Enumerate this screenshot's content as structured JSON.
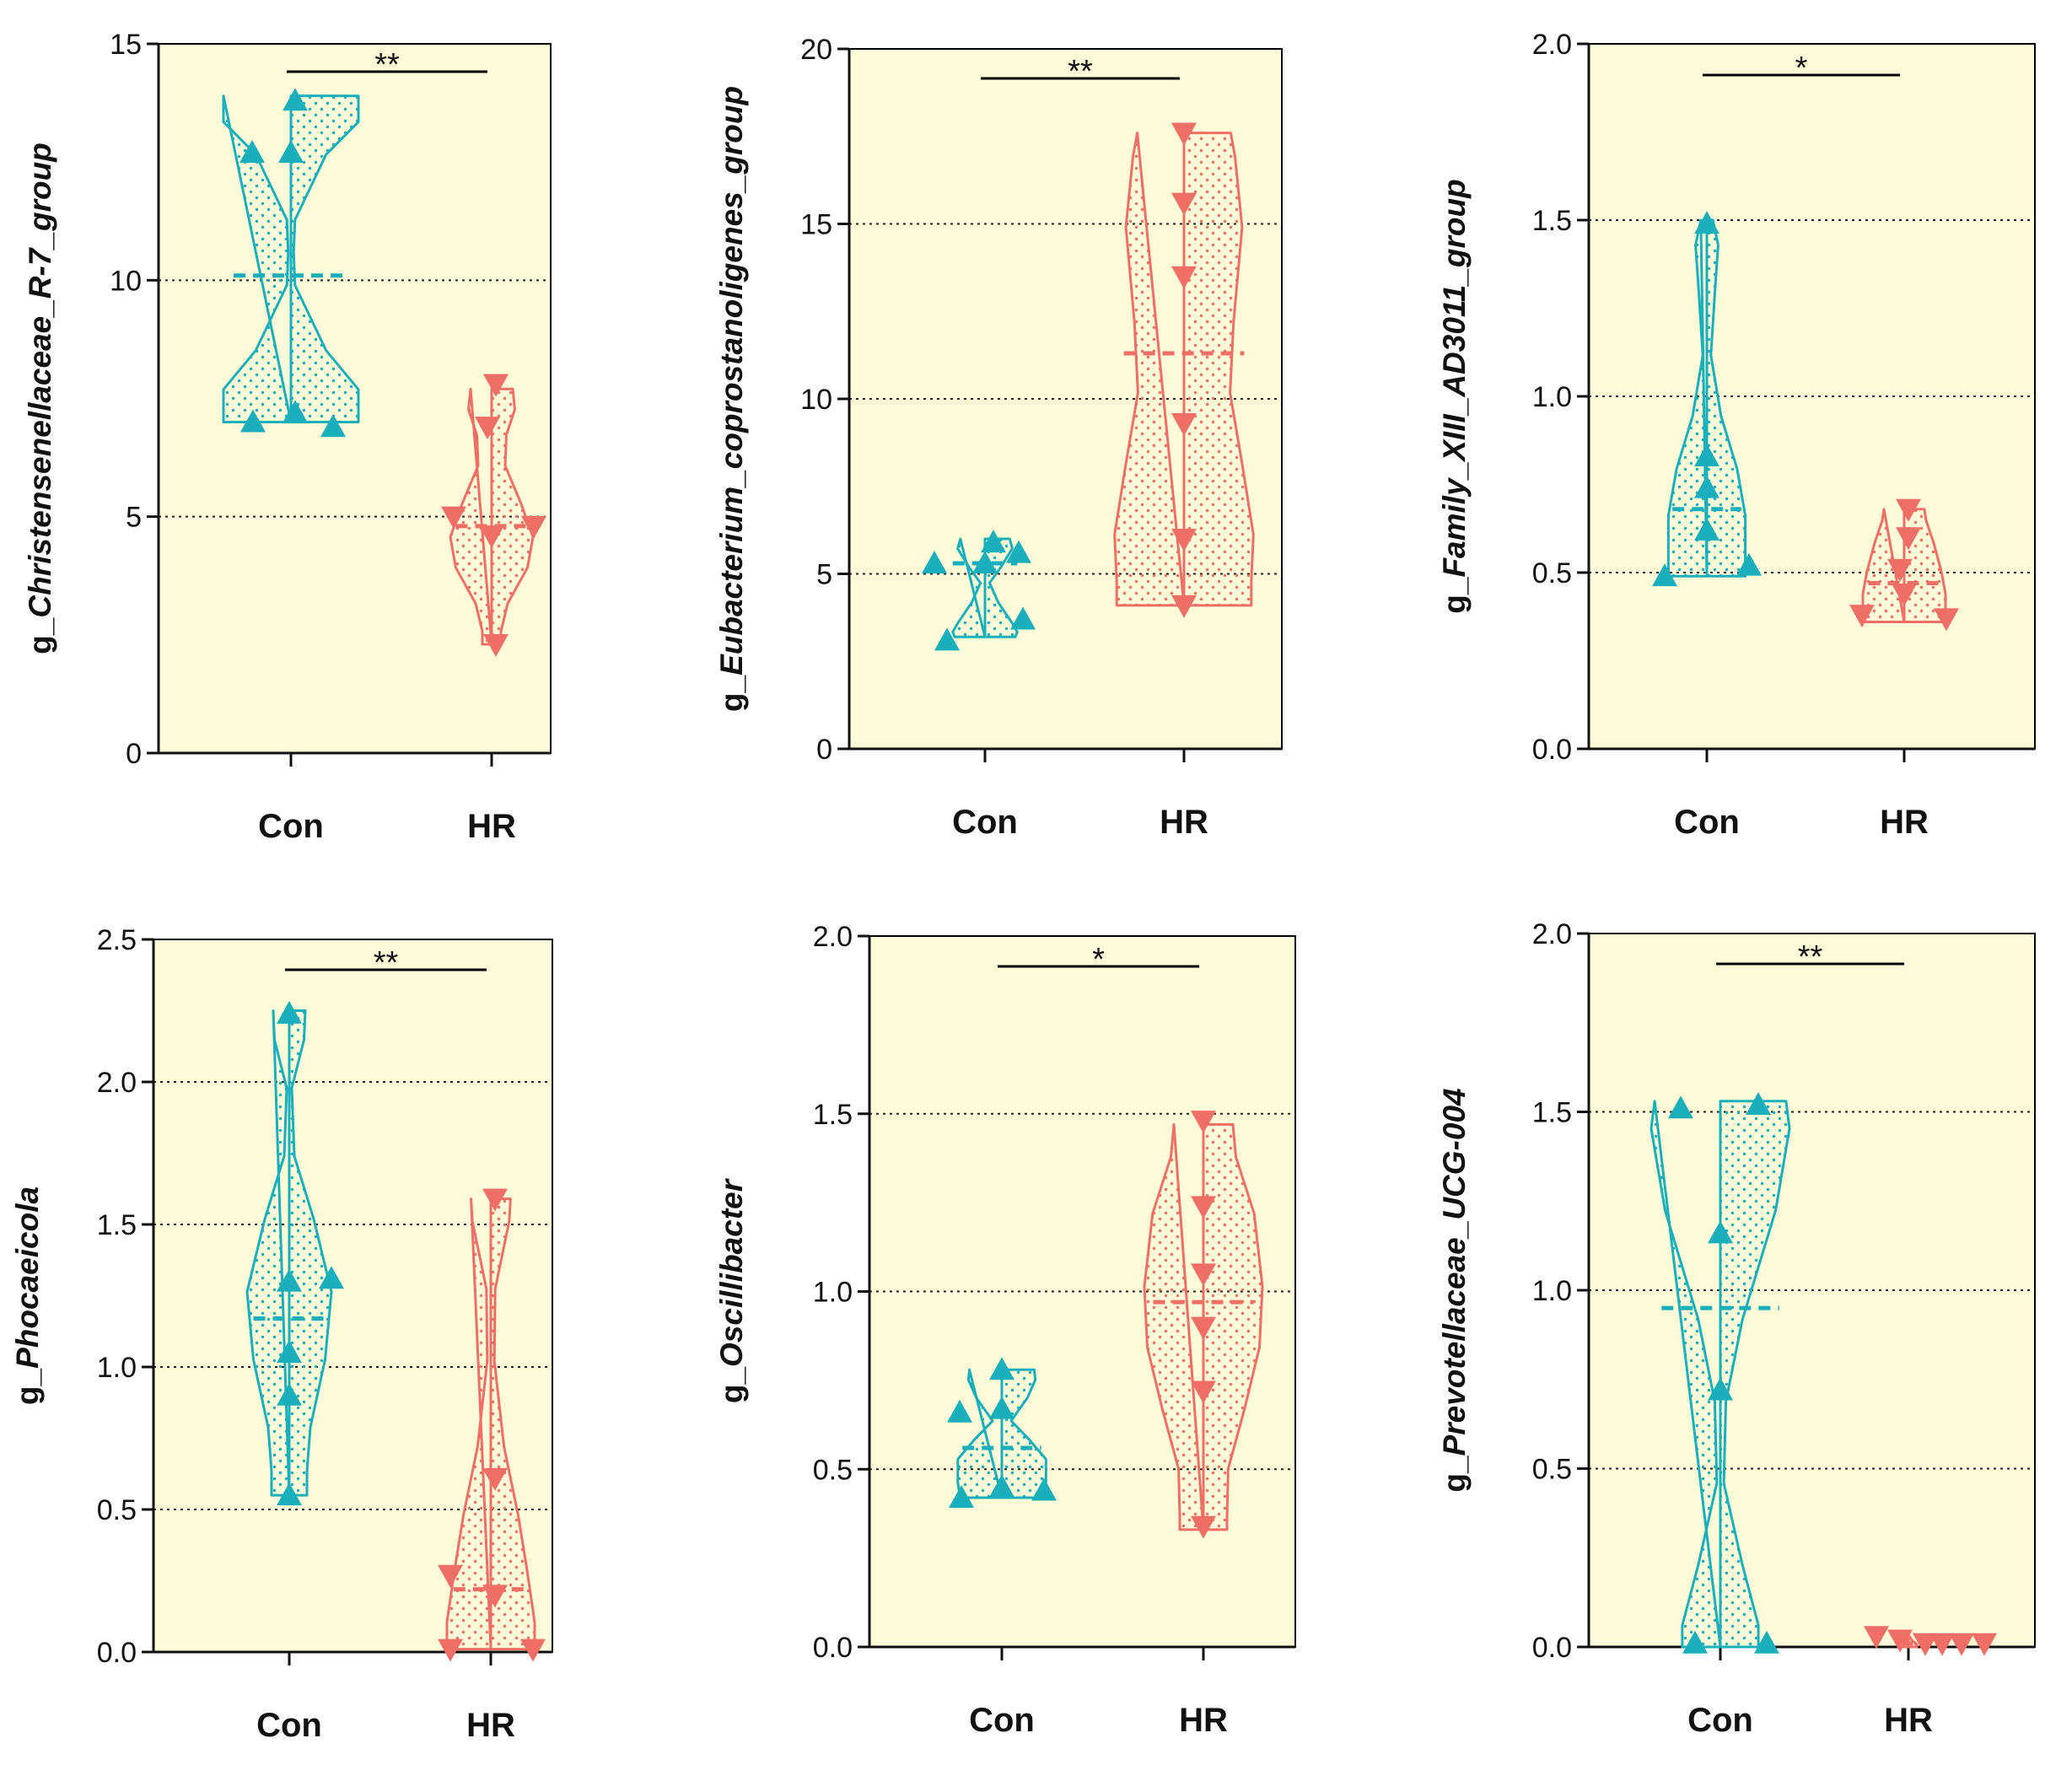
{
  "figure": {
    "colors": {
      "con": "#1aafbb",
      "hr": "#ef6f67",
      "panel_bg": "#fdfbd8",
      "axis": "#111111"
    },
    "marker_names": {
      "con": "triangle-up-icon",
      "hr": "triangle-down-icon"
    }
  },
  "chart_data": [
    {
      "type": "violin",
      "ylabel_prefix": "g_",
      "ylabel_italic": "Christensenellaceae_R-7_group",
      "categories": [
        "Con",
        "HR"
      ],
      "ylim": [
        0,
        15
      ],
      "yticks": [
        0,
        5,
        10,
        15
      ],
      "ytick_labels": [
        "0",
        "5",
        "10",
        "15"
      ],
      "gridlines": [
        5,
        10
      ],
      "series": [
        {
          "name": "Con",
          "values": [
            13.8,
            12.7,
            12.7,
            7.2,
            7.0,
            6.9
          ],
          "median": 10.1,
          "range": [
            7.0,
            13.9
          ]
        },
        {
          "name": "HR",
          "values": [
            7.8,
            6.9,
            5.0,
            4.6,
            4.8,
            2.3
          ],
          "median": 4.8,
          "range": [
            2.3,
            7.7
          ]
        }
      ],
      "significance": "**"
    },
    {
      "type": "violin",
      "ylabel_prefix": "g_",
      "ylabel_italic": "Eubacterium_coprostanoligenes_group",
      "categories": [
        "Con",
        "HR"
      ],
      "ylim": [
        0,
        20
      ],
      "yticks": [
        0,
        5,
        10,
        15,
        20
      ],
      "ytick_labels": [
        "0",
        "5",
        "10",
        "15",
        "20"
      ],
      "gridlines": [
        5,
        10,
        15
      ],
      "series": [
        {
          "name": "Con",
          "values": [
            5.9,
            5.6,
            5.3,
            5.3,
            3.7,
            3.1
          ],
          "median": 5.3,
          "range": [
            3.2,
            6.0
          ]
        },
        {
          "name": "HR",
          "values": [
            17.6,
            15.6,
            13.5,
            9.3,
            6.0,
            4.1
          ],
          "median": 11.3,
          "range": [
            4.1,
            17.6
          ]
        }
      ],
      "significance": "**"
    },
    {
      "type": "violin",
      "ylabel_prefix": "g_",
      "ylabel_italic": "Family_XIII_AD3011_group",
      "categories": [
        "Con",
        "HR"
      ],
      "ylim": [
        0,
        2.0
      ],
      "yticks": [
        0,
        0.5,
        1.0,
        1.5,
        2.0
      ],
      "ytick_labels": [
        "0.0",
        "0.5",
        "1.0",
        "1.5",
        "2.0"
      ],
      "gridlines": [
        0.5,
        1.0,
        1.5
      ],
      "series": [
        {
          "name": "Con",
          "values": [
            1.49,
            0.83,
            0.74,
            0.62,
            0.52,
            0.49
          ],
          "median": 0.68,
          "range": [
            0.49,
            1.5
          ]
        },
        {
          "name": "HR",
          "values": [
            0.68,
            0.6,
            0.51,
            0.44,
            0.38,
            0.37
          ],
          "median": 0.47,
          "range": [
            0.36,
            0.68
          ]
        }
      ],
      "significance": "*"
    },
    {
      "type": "violin",
      "ylabel_prefix": "g_",
      "ylabel_italic": "Phocaeicola",
      "categories": [
        "Con",
        "HR"
      ],
      "ylim": [
        0,
        2.5
      ],
      "yticks": [
        0,
        0.5,
        1.0,
        1.5,
        2.0,
        2.5
      ],
      "ytick_labels": [
        "0.0",
        "0.5",
        "1.0",
        "1.5",
        "2.0",
        "2.5"
      ],
      "gridlines": [
        0.5,
        1.0,
        1.5,
        2.0
      ],
      "series": [
        {
          "name": "Con",
          "values": [
            2.24,
            1.31,
            1.3,
            1.05,
            0.9,
            0.55
          ],
          "median": 1.17,
          "range": [
            0.55,
            2.25
          ]
        },
        {
          "name": "HR",
          "values": [
            1.59,
            0.61,
            0.27,
            0.2,
            0.01,
            0.01
          ],
          "median": 0.22,
          "range": [
            0.01,
            1.59
          ]
        }
      ],
      "significance": "**"
    },
    {
      "type": "violin",
      "ylabel_prefix": "g_",
      "ylabel_italic": "Oscillibacter",
      "categories": [
        "Con",
        "HR"
      ],
      "ylim": [
        0,
        2.0
      ],
      "yticks": [
        0,
        0.5,
        1.0,
        1.5,
        2.0
      ],
      "ytick_labels": [
        "0.0",
        "0.5",
        "1.0",
        "1.5",
        "2.0"
      ],
      "gridlines": [
        0.5,
        1.0,
        1.5
      ],
      "series": [
        {
          "name": "Con",
          "values": [
            0.78,
            0.67,
            0.66,
            0.45,
            0.44,
            0.42
          ],
          "median": 0.56,
          "range": [
            0.42,
            0.78
          ]
        },
        {
          "name": "HR",
          "values": [
            1.48,
            1.24,
            1.05,
            0.9,
            0.72,
            0.34
          ],
          "median": 0.97,
          "range": [
            0.33,
            1.47
          ]
        }
      ],
      "significance": "*"
    },
    {
      "type": "violin",
      "ylabel_prefix": "g_",
      "ylabel_italic": "Prevotellaceae_UCG-004",
      "categories": [
        "Con",
        "HR"
      ],
      "ylim": [
        0,
        2.0
      ],
      "yticks": [
        0,
        0.5,
        1.0,
        1.5,
        2.0
      ],
      "ytick_labels": [
        "0.0",
        "0.5",
        "1.0",
        "1.5",
        "2.0"
      ],
      "gridlines": [
        0.5,
        1.0,
        1.5
      ],
      "series": [
        {
          "name": "Con",
          "values": [
            1.52,
            1.51,
            1.16,
            0.72,
            0.01,
            0.01
          ],
          "median": 0.95,
          "range": [
            0.0,
            1.53
          ]
        },
        {
          "name": "HR",
          "values": [
            0.03,
            0.02,
            0.01,
            0.01,
            0.01,
            0.01
          ],
          "median": 0.01,
          "range": [
            0.0,
            0.03
          ]
        }
      ],
      "significance": "**"
    }
  ]
}
